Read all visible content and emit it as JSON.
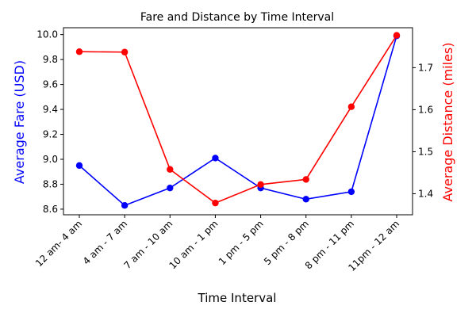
{
  "chart_data": {
    "type": "line",
    "title": "Fare and Distance by Time Interval",
    "xlabel": "Time Interval",
    "categories": [
      "12 am- 4 am",
      "4 am - 7 am",
      "7 am - 10 am",
      "10 am - 1 pm",
      "1 pm - 5 pm",
      "5 pm - 8 pm",
      "8 pm - 11 pm",
      "11pm - 12 am"
    ],
    "left_axis": {
      "label": "Average Fare (USD)",
      "color": "#0000ff",
      "ylim": [
        8.555,
        10.055
      ],
      "ticks": [
        "8.6",
        "8.8",
        "9.0",
        "9.2",
        "9.4",
        "9.6",
        "9.8",
        "10.0"
      ]
    },
    "right_axis": {
      "label": "Average Distance (miles)",
      "color": "#ff0000",
      "ylim": [
        1.35,
        1.795
      ],
      "ticks": [
        "1.4",
        "1.5",
        "1.6",
        "1.7"
      ]
    },
    "series": [
      {
        "axis": "left",
        "color": "#0000ff",
        "values": [
          8.95,
          8.63,
          8.77,
          9.01,
          8.77,
          8.68,
          8.74,
          9.99
        ]
      },
      {
        "axis": "right",
        "color": "#ff0000",
        "values": [
          1.738,
          1.737,
          1.458,
          1.378,
          1.422,
          1.434,
          1.607,
          1.777
        ]
      }
    ],
    "grid": false,
    "legend": "none"
  }
}
